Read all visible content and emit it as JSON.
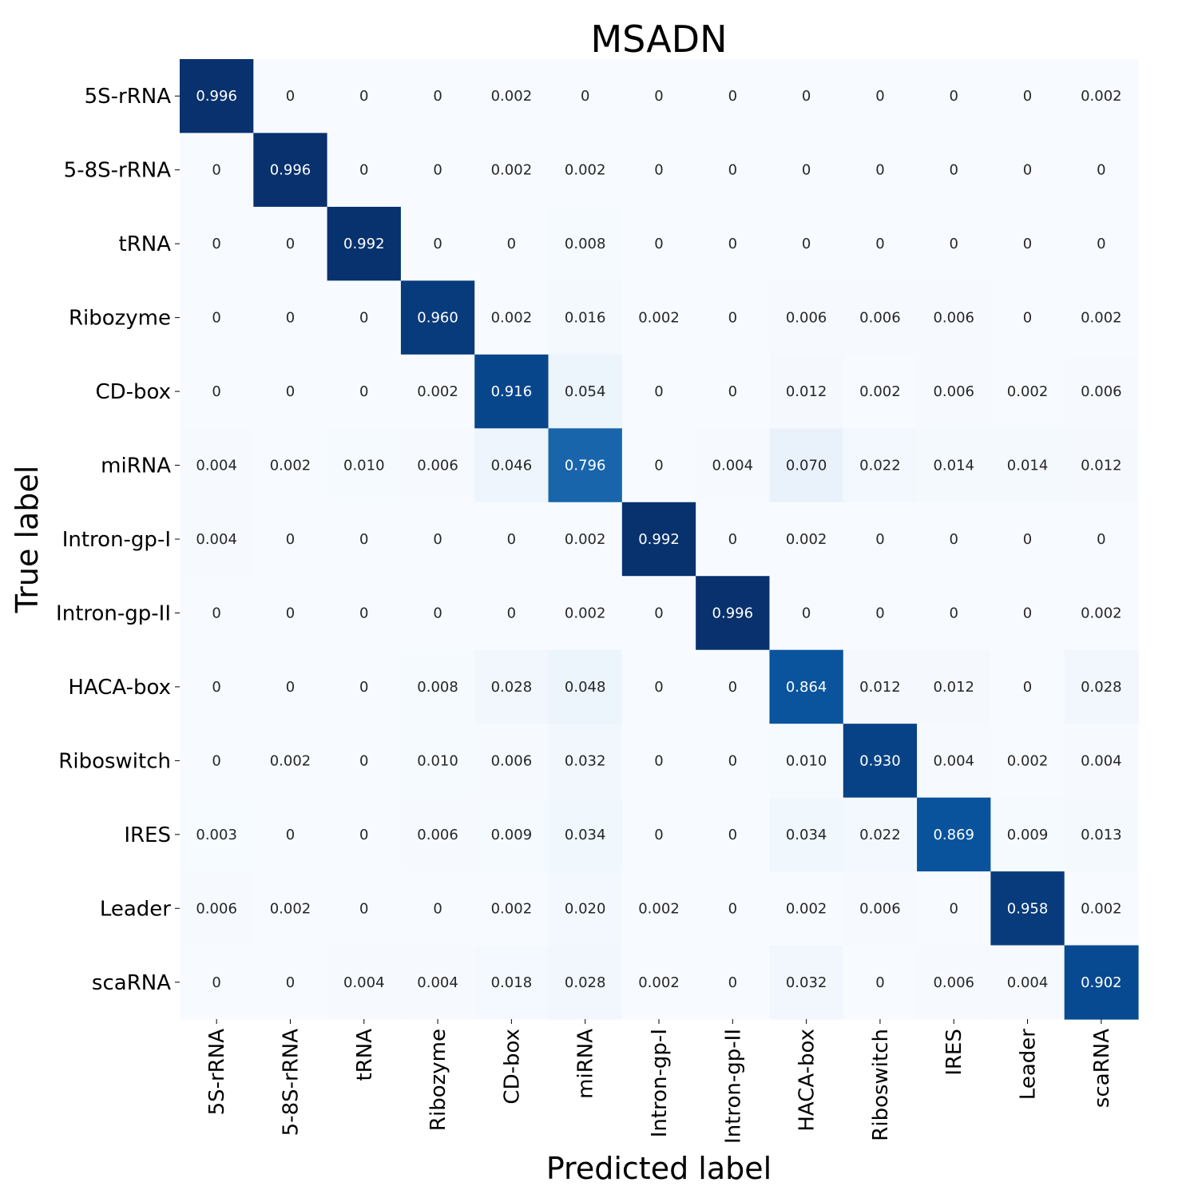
{
  "chart_data": {
    "type": "heatmap",
    "title": "MSADN",
    "xlabel": "Predicted label",
    "ylabel": "True label",
    "colormap": "Blues",
    "color_range": [
      0,
      1
    ],
    "x_categories": [
      "5S-rRNA",
      "5-8S-rRNA",
      "tRNA",
      "Ribozyme",
      "CD-box",
      "miRNA",
      "Intron-gp-I",
      "Intron-gp-II",
      "HACA-box",
      "Riboswitch",
      "IRES",
      "Leader",
      "scaRNA"
    ],
    "y_categories": [
      "5S-rRNA",
      "5-8S-rRNA",
      "tRNA",
      "Ribozyme",
      "CD-box",
      "miRNA",
      "Intron-gp-I",
      "Intron-gp-II",
      "HACA-box",
      "Riboswitch",
      "IRES",
      "Leader",
      "scaRNA"
    ],
    "cell_labels": [
      [
        "0.996",
        "0",
        "0",
        "0",
        "0.002",
        "0",
        "0",
        "0",
        "0",
        "0",
        "0",
        "0",
        "0.002"
      ],
      [
        "0",
        "0.996",
        "0",
        "0",
        "0.002",
        "0.002",
        "0",
        "0",
        "0",
        "0",
        "0",
        "0",
        "0"
      ],
      [
        "0",
        "0",
        "0.992",
        "0",
        "0",
        "0.008",
        "0",
        "0",
        "0",
        "0",
        "0",
        "0",
        "0"
      ],
      [
        "0",
        "0",
        "0",
        "0.960",
        "0.002",
        "0.016",
        "0.002",
        "0",
        "0.006",
        "0.006",
        "0.006",
        "0",
        "0.002"
      ],
      [
        "0",
        "0",
        "0",
        "0.002",
        "0.916",
        "0.054",
        "0",
        "0",
        "0.012",
        "0.002",
        "0.006",
        "0.002",
        "0.006"
      ],
      [
        "0.004",
        "0.002",
        "0.010",
        "0.006",
        "0.046",
        "0.796",
        "0",
        "0.004",
        "0.070",
        "0.022",
        "0.014",
        "0.014",
        "0.012"
      ],
      [
        "0.004",
        "0",
        "0",
        "0",
        "0",
        "0.002",
        "0.992",
        "0",
        "0.002",
        "0",
        "0",
        "0",
        "0"
      ],
      [
        "0",
        "0",
        "0",
        "0",
        "0",
        "0.002",
        "0",
        "0.996",
        "0",
        "0",
        "0",
        "0",
        "0.002"
      ],
      [
        "0",
        "0",
        "0",
        "0.008",
        "0.028",
        "0.048",
        "0",
        "0",
        "0.864",
        "0.012",
        "0.012",
        "0",
        "0.028"
      ],
      [
        "0",
        "0.002",
        "0",
        "0.010",
        "0.006",
        "0.032",
        "0",
        "0",
        "0.010",
        "0.930",
        "0.004",
        "0.002",
        "0.004"
      ],
      [
        "0.003",
        "0",
        "0",
        "0.006",
        "0.009",
        "0.034",
        "0",
        "0",
        "0.034",
        "0.022",
        "0.869",
        "0.009",
        "0.013"
      ],
      [
        "0.006",
        "0.002",
        "0",
        "0",
        "0.002",
        "0.020",
        "0.002",
        "0",
        "0.002",
        "0.006",
        "0",
        "0.958",
        "0.002"
      ],
      [
        "0",
        "0",
        "0.004",
        "0.004",
        "0.018",
        "0.028",
        "0.002",
        "0",
        "0.032",
        "0",
        "0.006",
        "0.004",
        "0.902"
      ]
    ],
    "colorbar": false,
    "grid": false
  }
}
